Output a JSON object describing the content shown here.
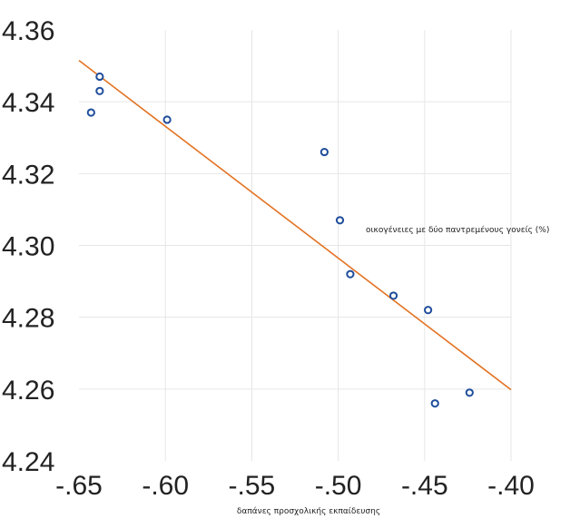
{
  "chart_data": {
    "type": "scatter",
    "title": "",
    "xlabel": "δαπάνες προσχολικής εκπαίδευσης",
    "ylabel": "οικογένειες με δύο παντρεμένους γονείς  (%)",
    "xlim": [
      -0.65,
      -0.4
    ],
    "ylim": [
      4.24,
      4.36
    ],
    "x_ticks": [
      -0.65,
      -0.6,
      -0.55,
      -0.5,
      -0.45,
      -0.4
    ],
    "x_tick_labels": [
      "-.65",
      "-.60",
      "-.55",
      "-.50",
      "-.45",
      "-.40"
    ],
    "y_ticks": [
      4.24,
      4.26,
      4.28,
      4.3,
      4.32,
      4.34,
      4.36
    ],
    "y_tick_labels": [
      "4.24",
      "4.26",
      "4.28",
      "4.30",
      "4.32",
      "4.34",
      "4.36"
    ],
    "grid": true,
    "point_color": "#1f4e9c",
    "line_color": "#e37222",
    "points": [
      {
        "x": -0.643,
        "y": 4.337
      },
      {
        "x": -0.638,
        "y": 4.347
      },
      {
        "x": -0.638,
        "y": 4.343
      },
      {
        "x": -0.599,
        "y": 4.335
      },
      {
        "x": -0.508,
        "y": 4.326
      },
      {
        "x": -0.499,
        "y": 4.307
      },
      {
        "x": -0.493,
        "y": 4.292
      },
      {
        "x": -0.468,
        "y": 4.286
      },
      {
        "x": -0.448,
        "y": 4.282
      },
      {
        "x": -0.444,
        "y": 4.256
      },
      {
        "x": -0.424,
        "y": 4.259
      }
    ],
    "trendline": {
      "x": [
        -0.65,
        -0.4
      ],
      "y": [
        4.3515,
        4.2598
      ]
    }
  }
}
